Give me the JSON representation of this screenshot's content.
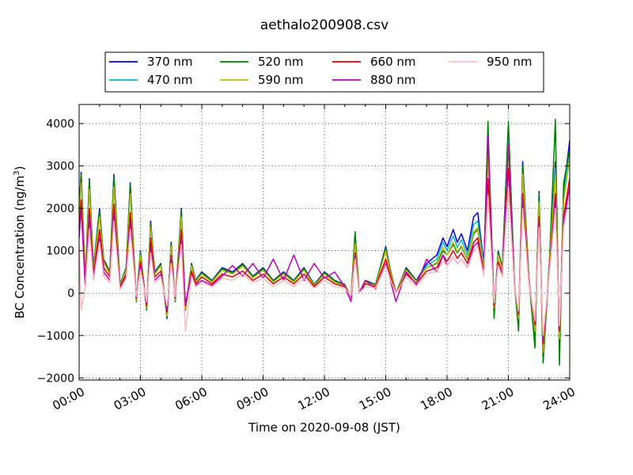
{
  "chart_data": {
    "type": "line",
    "title": "aethalo200908.csv",
    "xlabel": "Time on 2020-09-08 (JST)",
    "ylabel": "BC Concentration (ng/m",
    "ylabel_sup": "3",
    "ylabel_end": ")",
    "xlim": [
      "00:00",
      "24:00"
    ],
    "ylim": [
      -2050,
      4450
    ],
    "x_ticks": [
      "00:00",
      "03:00",
      "06:00",
      "09:00",
      "12:00",
      "15:00",
      "18:00",
      "21:00",
      "24:00"
    ],
    "y_ticks": [
      -2000,
      -1000,
      0,
      1000,
      2000,
      3000,
      4000
    ],
    "y_tick_labels": [
      "−2000",
      "−1000",
      "0",
      "1000",
      "2000",
      "3000",
      "4000"
    ],
    "grid": true,
    "legend_position": "top",
    "x_hours": [
      0,
      0.1,
      0.3,
      0.5,
      0.7,
      1.0,
      1.2,
      1.5,
      1.7,
      2.0,
      2.3,
      2.5,
      2.8,
      3.0,
      3.3,
      3.5,
      3.7,
      4.0,
      4.3,
      4.5,
      4.7,
      5.0,
      5.2,
      5.5,
      5.7,
      6.0,
      6.5,
      7.0,
      7.5,
      8.0,
      8.5,
      9.0,
      9.5,
      10.0,
      10.5,
      11.0,
      11.5,
      12.0,
      12.5,
      13.0,
      13.3,
      13.5,
      13.7,
      14.0,
      14.5,
      15.0,
      15.2,
      15.5,
      16.0,
      16.5,
      17.0,
      17.5,
      17.8,
      18.0,
      18.3,
      18.5,
      18.7,
      19.0,
      19.3,
      19.5,
      19.8,
      20.0,
      20.3,
      20.5,
      20.7,
      21.0,
      21.3,
      21.5,
      21.7,
      22.0,
      22.3,
      22.5,
      22.7,
      23.0,
      23.3,
      23.5,
      23.7,
      24.0
    ],
    "series": [
      {
        "name": "370 nm",
        "color": "#0000dd",
        "values": [
          2000,
          2850,
          300,
          2700,
          600,
          2000,
          800,
          500,
          2800,
          200,
          600,
          2600,
          -200,
          1000,
          -400,
          1700,
          500,
          700,
          -600,
          1200,
          -200,
          2000,
          -400,
          700,
          300,
          500,
          300,
          600,
          500,
          700,
          400,
          600,
          300,
          500,
          300,
          600,
          200,
          500,
          300,
          200,
          -100,
          1300,
          0,
          300,
          200,
          1100,
          600,
          0,
          600,
          300,
          700,
          900,
          1300,
          1100,
          1500,
          1200,
          1400,
          1000,
          1800,
          1900,
          700,
          3600,
          -400,
          1000,
          600,
          3900,
          200,
          -700,
          3100,
          400,
          -1000,
          2400,
          -1600,
          700,
          3100,
          -1200,
          2400,
          3600
        ]
      },
      {
        "name": "470 nm",
        "color": "#00bbcc",
        "values": [
          1900,
          2700,
          280,
          2550,
          560,
          1900,
          760,
          470,
          2650,
          180,
          560,
          2450,
          -180,
          950,
          -380,
          1600,
          470,
          660,
          -560,
          1130,
          -180,
          1880,
          -380,
          660,
          280,
          470,
          280,
          560,
          470,
          660,
          380,
          560,
          280,
          470,
          280,
          560,
          180,
          470,
          280,
          180,
          -90,
          1230,
          0,
          280,
          180,
          1040,
          560,
          0,
          560,
          280,
          650,
          800,
          1200,
          1000,
          1350,
          1080,
          1260,
          900,
          1620,
          1700,
          630,
          3400,
          -380,
          940,
          560,
          3700,
          180,
          -660,
          2950,
          380,
          -950,
          2280,
          -1500,
          660,
          2950,
          -1140,
          2280,
          3420
        ]
      },
      {
        "name": "520 nm",
        "color": "#008000",
        "values": [
          1950,
          2800,
          290,
          2650,
          580,
          1950,
          780,
          480,
          2750,
          190,
          580,
          2550,
          -190,
          980,
          -390,
          1650,
          480,
          680,
          -580,
          1160,
          -190,
          1950,
          -390,
          680,
          290,
          480,
          290,
          580,
          480,
          680,
          390,
          580,
          290,
          480,
          290,
          580,
          190,
          480,
          290,
          190,
          -95,
          1450,
          0,
          290,
          190,
          1060,
          580,
          0,
          580,
          290,
          600,
          700,
          1000,
          900,
          1150,
          950,
          1100,
          800,
          1400,
          1500,
          600,
          4050,
          -600,
          980,
          580,
          4050,
          190,
          -900,
          3000,
          390,
          -1300,
          2350,
          -1650,
          680,
          4100,
          -1700,
          2600,
          3400
        ]
      },
      {
        "name": "590 nm",
        "color": "#bbbb00",
        "values": [
          1800,
          2600,
          260,
          2450,
          540,
          1800,
          720,
          450,
          2500,
          170,
          540,
          2350,
          -170,
          900,
          -360,
          1550,
          450,
          640,
          -540,
          1100,
          -170,
          1800,
          -360,
          640,
          260,
          450,
          260,
          540,
          450,
          640,
          360,
          540,
          260,
          450,
          260,
          540,
          170,
          450,
          260,
          170,
          -85,
          1170,
          0,
          260,
          170,
          990,
          540,
          0,
          540,
          260,
          600,
          720,
          1080,
          900,
          1200,
          980,
          1120,
          820,
          1450,
          1550,
          570,
          3200,
          -340,
          900,
          540,
          3500,
          170,
          -600,
          2800,
          360,
          -900,
          2150,
          -1400,
          630,
          2800,
          -1080,
          2150,
          3200
        ]
      },
      {
        "name": "660 nm",
        "color": "#dd0000",
        "values": [
          1500,
          2200,
          200,
          2000,
          450,
          1500,
          600,
          380,
          2100,
          150,
          450,
          1900,
          -120,
          750,
          -300,
          1300,
          380,
          520,
          -450,
          900,
          -120,
          1500,
          -300,
          520,
          220,
          380,
          220,
          450,
          380,
          520,
          300,
          450,
          220,
          380,
          220,
          450,
          150,
          380,
          220,
          150,
          -70,
          950,
          0,
          220,
          150,
          800,
          450,
          0,
          450,
          220,
          520,
          600,
          900,
          750,
          1000,
          820,
          950,
          700,
          1200,
          1300,
          480,
          2700,
          -280,
          750,
          450,
          2950,
          150,
          -500,
          2350,
          300,
          -750,
          1800,
          -1200,
          520,
          2350,
          -900,
          1800,
          2700
        ]
      },
      {
        "name": "880 nm",
        "color": "#bb00bb",
        "values": [
          1300,
          2000,
          150,
          1800,
          400,
          1300,
          500,
          300,
          1900,
          100,
          400,
          1700,
          -100,
          650,
          -250,
          1100,
          300,
          450,
          -400,
          800,
          -100,
          1300,
          -250,
          450,
          180,
          300,
          180,
          400,
          650,
          400,
          700,
          350,
          800,
          300,
          900,
          300,
          700,
          350,
          500,
          150,
          -200,
          900,
          0,
          300,
          100,
          700,
          350,
          -200,
          500,
          200,
          800,
          500,
          900,
          650,
          850,
          700,
          800,
          600,
          1100,
          1200,
          450,
          3700,
          -250,
          700,
          400,
          3500,
          100,
          -450,
          2200,
          250,
          -700,
          1700,
          -1100,
          480,
          2200,
          -850,
          1700,
          2500
        ]
      },
      {
        "name": "950 nm",
        "color": "#ffbbbb",
        "values": [
          1100,
          -400,
          150,
          1500,
          300,
          1200,
          400,
          250,
          1700,
          80,
          350,
          1500,
          -80,
          550,
          -200,
          950,
          250,
          380,
          -300,
          700,
          -80,
          1150,
          -900,
          400,
          150,
          250,
          150,
          350,
          300,
          450,
          250,
          350,
          150,
          300,
          150,
          350,
          120,
          300,
          150,
          120,
          -60,
          800,
          0,
          150,
          120,
          650,
          350,
          0,
          380,
          150,
          450,
          520,
          750,
          650,
          850,
          700,
          800,
          600,
          1000,
          1100,
          400,
          2300,
          -230,
          650,
          380,
          2500,
          120,
          -420,
          2000,
          250,
          -650,
          1550,
          -1000,
          450,
          2000,
          -770,
          1550,
          2300
        ]
      }
    ]
  }
}
